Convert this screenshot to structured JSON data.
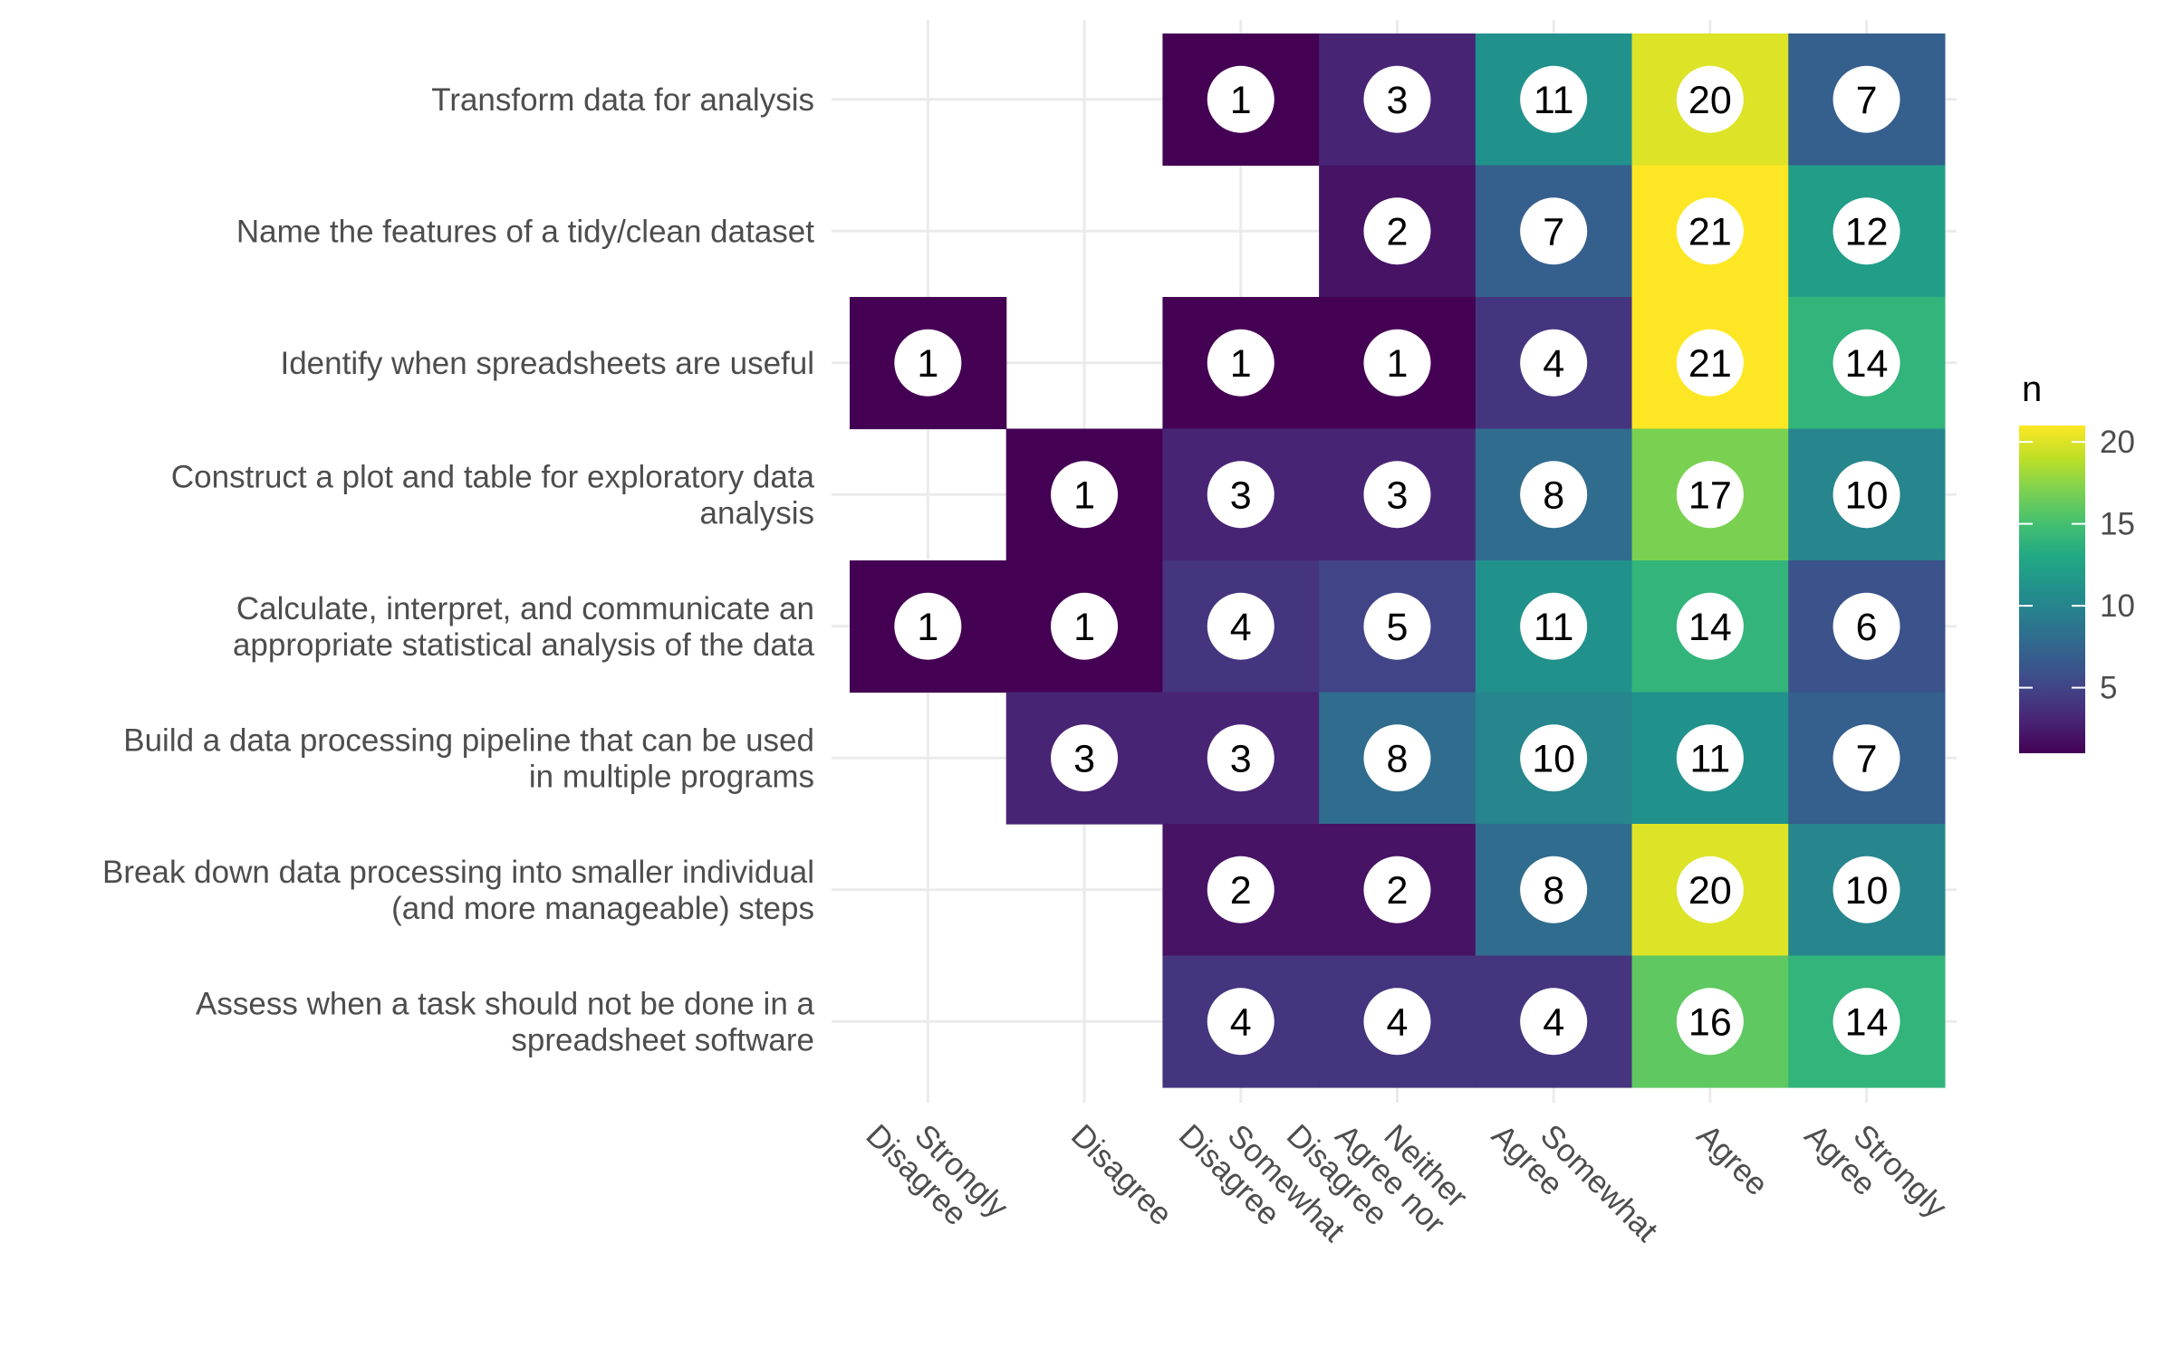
{
  "chart_data": {
    "type": "heatmap",
    "title": "",
    "xlabel": "",
    "ylabel": "",
    "x_categories": [
      [
        "Strongly",
        "Disagree"
      ],
      [
        "Disagree"
      ],
      [
        "Somewhat",
        "Disagree"
      ],
      [
        "Neither",
        "Agree nor",
        "Disagree"
      ],
      [
        "Somewhat",
        "Agree"
      ],
      [
        "Agree"
      ],
      [
        "Strongly",
        "Agree"
      ]
    ],
    "y_categories": [
      [
        "Transform data for analysis"
      ],
      [
        "Name the features of a tidy/clean dataset"
      ],
      [
        "Identify when spreadsheets are useful"
      ],
      [
        "Construct a plot and table for exploratory data",
        "analysis"
      ],
      [
        "Calculate, interpret, and communicate an",
        "appropriate statistical analysis of the data"
      ],
      [
        "Build a data processing pipeline that can be used",
        "in multiple programs"
      ],
      [
        "Break down data processing into smaller individual",
        "(and more manageable) steps"
      ],
      [
        "Assess when a task should not be done in a",
        "spreadsheet software"
      ]
    ],
    "values": [
      [
        null,
        null,
        1,
        3,
        11,
        20,
        7
      ],
      [
        null,
        null,
        null,
        2,
        7,
        21,
        12
      ],
      [
        1,
        null,
        1,
        1,
        4,
        21,
        14
      ],
      [
        null,
        1,
        3,
        3,
        8,
        17,
        10
      ],
      [
        1,
        1,
        4,
        5,
        11,
        14,
        6
      ],
      [
        null,
        3,
        3,
        8,
        10,
        11,
        7
      ],
      [
        null,
        null,
        2,
        2,
        8,
        20,
        10
      ],
      [
        null,
        null,
        4,
        4,
        4,
        16,
        14
      ]
    ],
    "legend": {
      "title": "n",
      "ticks": [
        5,
        10,
        15,
        20
      ],
      "range": [
        1,
        21
      ],
      "palette": "viridis",
      "placement": "right"
    },
    "grid": true
  }
}
